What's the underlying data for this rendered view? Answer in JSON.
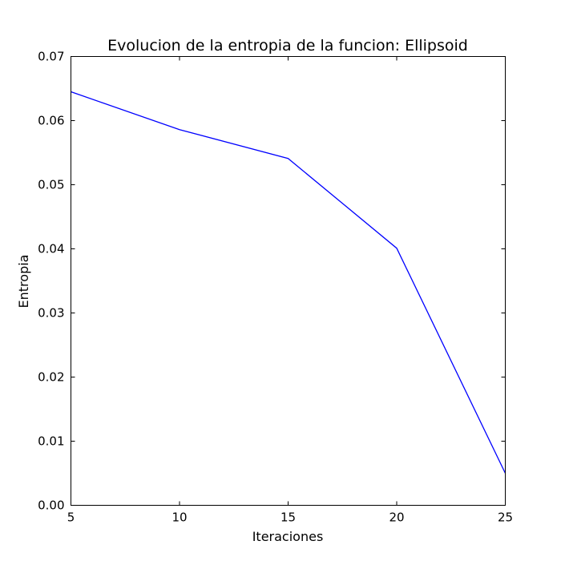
{
  "chart_data": {
    "type": "line",
    "title": "Evolucion de la entropia de la funcion: Ellipsoid",
    "xlabel": "Iteraciones",
    "ylabel": "Entropia",
    "x": [
      5,
      10,
      15,
      20,
      25
    ],
    "series": [
      {
        "values": [
          0.0645,
          0.0586,
          0.0541,
          0.0401,
          0.005
        ],
        "color": "#0000ff"
      }
    ],
    "xlim": [
      5,
      25
    ],
    "ylim": [
      0.0,
      0.07
    ],
    "xticks": [
      "5",
      "10",
      "15",
      "20",
      "25"
    ],
    "yticks": [
      "0.00",
      "0.01",
      "0.02",
      "0.03",
      "0.04",
      "0.05",
      "0.06",
      "0.07"
    ],
    "grid": false,
    "legend": "none"
  }
}
